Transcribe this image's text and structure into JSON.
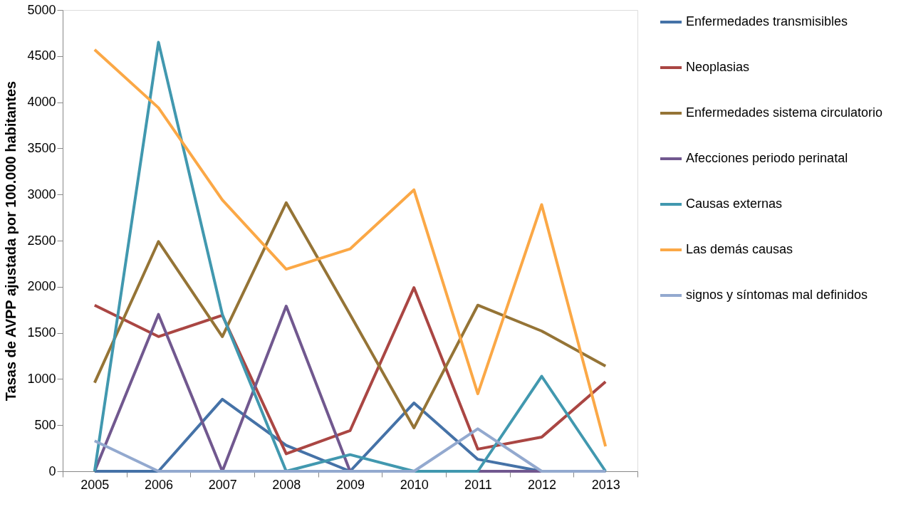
{
  "chart_data": {
    "type": "line",
    "ylabel": "Tasas de AVPP ajustada por 100.000 habitantes",
    "categories": [
      "2005",
      "2006",
      "2007",
      "2008",
      "2009",
      "2010",
      "2011",
      "2012",
      "2013"
    ],
    "ylim": [
      0,
      5000
    ],
    "yticks": [
      0,
      500,
      1000,
      1500,
      2000,
      2500,
      3000,
      3500,
      4000,
      4500,
      5000
    ],
    "grid": false,
    "legend": "right",
    "marker": "none",
    "line_style": "solid",
    "series": [
      {
        "name": "Enfermedades transmisibles",
        "color": "#4572a7",
        "values": [
          0,
          0,
          780,
          280,
          0,
          740,
          130,
          0,
          0
        ]
      },
      {
        "name": "Neoplasias",
        "color": "#aa4643",
        "values": [
          1800,
          1460,
          1690,
          190,
          440,
          1990,
          240,
          370,
          970
        ]
      },
      {
        "name": "Enfermedades sistema circulatorio",
        "color": "#957436",
        "values": [
          960,
          2490,
          1460,
          2910,
          1700,
          470,
          1800,
          1520,
          1140
        ]
      },
      {
        "name": "Afecciones periodo perinatal",
        "color": "#71588f",
        "values": [
          0,
          1700,
          0,
          1790,
          0,
          0,
          0,
          0,
          0
        ]
      },
      {
        "name": "Causas externas",
        "color": "#4198af",
        "values": [
          0,
          4650,
          1700,
          0,
          180,
          0,
          0,
          1030,
          0
        ]
      },
      {
        "name": "Las demás causas",
        "color": "#fba846",
        "values": [
          4570,
          3940,
          2940,
          2190,
          2410,
          3050,
          840,
          2890,
          270
        ]
      },
      {
        "name": "signos y síntomas mal definidos",
        "color": "#93a9cf",
        "values": [
          330,
          0,
          0,
          0,
          0,
          0,
          460,
          0,
          0
        ]
      }
    ]
  }
}
